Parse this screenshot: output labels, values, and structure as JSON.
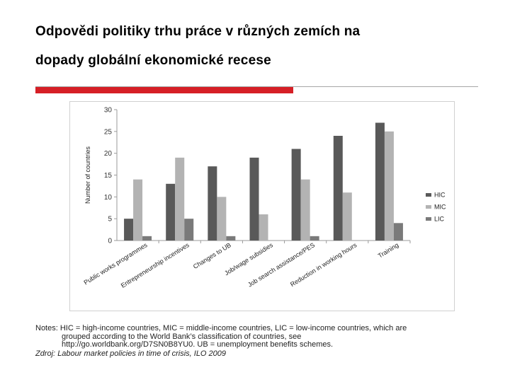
{
  "slide": {
    "title_line_1": "Odpovědi politiky trhu práce v různých zemích na",
    "title_line_2": "dopady globální ekonomické recese",
    "accent_color": "#d61f26"
  },
  "notes": {
    "line_1": "Notes: HIC = high-income countries, MIC = middle-income countries, LIC = low-income countries, which are",
    "line_2": "grouped according to the World  Bank’s classification of countries, see",
    "line_3": "http://go.worldbank.org/D7SN0B8YU0. UB = unemployment benefits schemes."
  },
  "source": {
    "label": "Zdroj:",
    "work": "Labour market policies in time of crisis, ILO 2009"
  },
  "chart_data": {
    "type": "bar",
    "ylabel": "Number of countries",
    "xlabel": "",
    "title": "",
    "ylim": [
      0,
      30
    ],
    "yticks": [
      0,
      5,
      10,
      15,
      20,
      25,
      30
    ],
    "grid": false,
    "legend_position": "right",
    "categories": [
      "Public works programmes",
      "Entrepreneurship incentives",
      "Changes to UB",
      "Job/wage subsidies",
      "Job search assistance/PES",
      "Reduction in working hours",
      "Training"
    ],
    "series": [
      {
        "name": "HIC",
        "color": "#595959",
        "values": [
          5,
          13,
          17,
          19,
          21,
          24,
          27
        ]
      },
      {
        "name": "MIC",
        "color": "#b3b3b3",
        "values": [
          14,
          19,
          10,
          6,
          14,
          11,
          25
        ]
      },
      {
        "name": "LIC",
        "color": "#7a7a7a",
        "values": [
          1,
          5,
          1,
          0,
          1,
          0,
          4
        ]
      }
    ]
  }
}
